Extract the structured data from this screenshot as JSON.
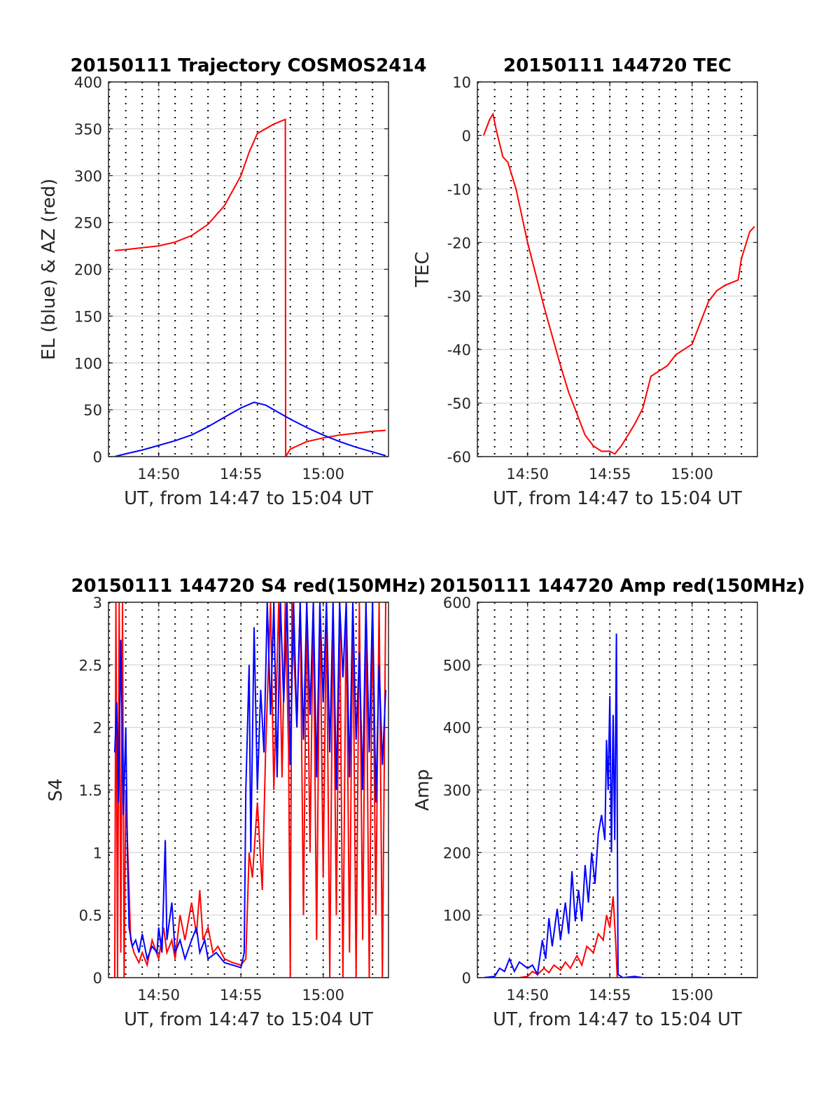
{
  "chart_data": [
    {
      "type": "line",
      "title": "20150111 Trajectory COSMOS2414",
      "xlabel": "UT, from 14:47 to 15:04 UT",
      "ylabel": "EL (blue) & AZ (red)",
      "x_unit": "minutes after 14:00",
      "xlim": [
        46.95,
        63.97
      ],
      "ylim": [
        0,
        400
      ],
      "yticks": [
        0,
        50,
        100,
        150,
        200,
        250,
        300,
        350,
        400
      ],
      "xticks": [
        {
          "v": 50,
          "label": "14:50"
        },
        {
          "v": 55,
          "label": "14:55"
        },
        {
          "v": 60,
          "label": "15:00"
        }
      ],
      "grid": true,
      "series": [
        {
          "name": "AZ",
          "color": "#ff0000",
          "x": [
            47.33,
            48,
            49,
            50,
            51,
            52,
            53,
            54,
            55,
            55.5,
            56,
            57,
            57.7,
            57.72,
            58,
            59,
            60,
            61,
            62,
            63,
            63.8
          ],
          "y": [
            220,
            221,
            223,
            225,
            229,
            236,
            248,
            268,
            300,
            325,
            345,
            355,
            360,
            0,
            8,
            16,
            20,
            23,
            25,
            27,
            28
          ]
        },
        {
          "name": "EL",
          "color": "#0000ff",
          "x": [
            47.33,
            48,
            49,
            50,
            51,
            52,
            53,
            54,
            55,
            55.8,
            56.5,
            57,
            58,
            59,
            60,
            61,
            62,
            63,
            63.8
          ],
          "y": [
            0,
            3,
            7,
            12,
            17,
            23,
            32,
            42,
            52,
            58,
            55,
            50,
            40,
            31,
            23,
            16,
            10,
            5,
            1
          ]
        }
      ]
    },
    {
      "type": "line",
      "title": "20150111 144720 TEC",
      "xlabel": "UT, from 14:47 to 15:04 UT",
      "ylabel": "TEC",
      "x_unit": "minutes after 14:00",
      "xlim": [
        46.95,
        63.97
      ],
      "ylim": [
        -60,
        10
      ],
      "yticks": [
        -60,
        -50,
        -40,
        -30,
        -20,
        -10,
        0,
        10
      ],
      "xticks": [
        {
          "v": 50,
          "label": "14:50"
        },
        {
          "v": 55,
          "label": "14:55"
        },
        {
          "v": 60,
          "label": "15:00"
        }
      ],
      "grid": true,
      "series": [
        {
          "name": "TEC",
          "color": "#ff0000",
          "x": [
            47.33,
            47.7,
            47.9,
            48.1,
            48.5,
            48.8,
            49.3,
            50,
            51,
            52,
            52.5,
            53,
            53.5,
            54,
            54.5,
            55,
            55.3,
            55.7,
            56.5,
            57,
            57.5,
            58,
            58.5,
            59,
            59.5,
            60,
            60.5,
            61,
            61.5,
            62,
            62.8,
            63,
            63.5,
            63.8
          ],
          "y": [
            0,
            3,
            4,
            1,
            -4,
            -5,
            -10,
            -20,
            -32,
            -43,
            -48,
            -52,
            -56,
            -58,
            -59,
            -59,
            -59.5,
            -58,
            -54,
            -51,
            -45,
            -44,
            -43,
            -41,
            -40,
            -39,
            -35,
            -31,
            -29,
            -28,
            -27,
            -23,
            -18,
            -17
          ]
        }
      ]
    },
    {
      "type": "line",
      "title": "20150111 144720 S4 red(150MHz)",
      "xlabel": "UT, from 14:47 to 15:04 UT",
      "ylabel": "S4",
      "x_unit": "minutes after 14:00",
      "xlim": [
        46.95,
        63.97
      ],
      "ylim": [
        0,
        3
      ],
      "yticks": [
        0,
        0.5,
        1,
        1.5,
        2,
        2.5,
        3
      ],
      "xticks": [
        {
          "v": 50,
          "label": "14:50"
        },
        {
          "v": 55,
          "label": "14:55"
        },
        {
          "v": 60,
          "label": "15:00"
        }
      ],
      "grid": true,
      "series": [
        {
          "name": "red",
          "color": "#ff0000",
          "x": [
            47.33,
            47.4,
            47.5,
            47.6,
            47.7,
            47.8,
            47.9,
            48,
            48.3,
            48.5,
            48.8,
            49,
            49.3,
            49.6,
            50,
            50.3,
            50.5,
            50.8,
            51,
            51.3,
            51.6,
            52,
            52.3,
            52.5,
            52.7,
            53,
            53.3,
            53.6,
            54,
            54.5,
            55,
            55.3,
            55.5,
            55.7,
            56,
            56.3,
            56.5,
            56.8,
            57,
            57.3,
            57.5,
            57.7,
            57.9,
            58,
            58.1,
            58.4,
            58.6,
            58.8,
            59,
            59.2,
            59.4,
            59.6,
            59.8,
            60,
            60.2,
            60.4,
            60.6,
            60.8,
            61,
            61.2,
            61.4,
            61.6,
            61.8,
            62,
            62.2,
            62.4,
            62.6,
            62.8,
            63,
            63.2,
            63.4,
            63.6,
            63.8
          ],
          "y": [
            0,
            3,
            0,
            3,
            0.2,
            3,
            0,
            1.5,
            0.3,
            0.2,
            0.12,
            0.2,
            0.1,
            0.3,
            0.15,
            0.4,
            0.2,
            0.3,
            0.15,
            0.5,
            0.3,
            0.6,
            0.35,
            0.7,
            0.3,
            0.4,
            0.2,
            0.25,
            0.15,
            0.12,
            0.1,
            0.15,
            1.0,
            0.8,
            1.4,
            0.7,
            1.8,
            3,
            1.5,
            3,
            1.6,
            3,
            1.8,
            0,
            3,
            2,
            3,
            0.5,
            3,
            1,
            3,
            0.3,
            3,
            0.8,
            3,
            0,
            3,
            0.5,
            3,
            0,
            3,
            0.2,
            3,
            0,
            3,
            0.3,
            3,
            0,
            3,
            0.5,
            3,
            0,
            3
          ]
        },
        {
          "name": "blue",
          "color": "#0000ff",
          "x": [
            47.33,
            47.45,
            47.55,
            47.7,
            47.85,
            48,
            48.1,
            48.2,
            48.4,
            48.6,
            48.8,
            49,
            49.3,
            49.6,
            49.9,
            50,
            50.2,
            50.4,
            50.5,
            50.8,
            51,
            51.3,
            51.6,
            52,
            52.3,
            52.5,
            52.8,
            53,
            53.5,
            54,
            54.5,
            55,
            55.2,
            55.3,
            55.5,
            55.6,
            55.8,
            56,
            56.2,
            56.4,
            56.6,
            56.8,
            57,
            57.2,
            57.4,
            57.6,
            57.8,
            58,
            58.2,
            58.4,
            58.6,
            58.8,
            59,
            59.2,
            59.4,
            59.6,
            59.8,
            60,
            60.2,
            60.4,
            60.6,
            60.8,
            61,
            61.2,
            61.4,
            61.6,
            61.8,
            62,
            62.2,
            62.4,
            62.6,
            62.8,
            63,
            63.2,
            63.4,
            63.6,
            63.8
          ],
          "y": [
            1.8,
            2.2,
            1.4,
            2.7,
            1.3,
            2.0,
            1.0,
            0.4,
            0.25,
            0.3,
            0.2,
            0.35,
            0.15,
            0.25,
            0.2,
            0.4,
            0.2,
            1.1,
            0.3,
            0.6,
            0.2,
            0.3,
            0.15,
            0.3,
            0.4,
            0.2,
            0.3,
            0.15,
            0.2,
            0.12,
            0.1,
            0.08,
            0.2,
            1.5,
            2.5,
            1.0,
            2.8,
            1.5,
            2.3,
            1.8,
            3,
            2.1,
            3,
            1.6,
            3,
            2.2,
            3,
            1.7,
            3,
            2.0,
            3,
            1.9,
            3,
            2.1,
            3,
            1.6,
            3,
            2.2,
            3,
            1.8,
            3,
            1.5,
            3,
            2.4,
            3,
            1.6,
            3,
            1.9,
            2.6,
            1.5,
            3,
            1.8,
            3,
            1.4,
            2.5,
            1.7,
            2.3
          ]
        }
      ]
    },
    {
      "type": "line",
      "title": "20150111 144720 Amp red(150MHz)",
      "xlabel": "UT, from 14:47 to 15:04 UT",
      "ylabel": "Amp",
      "x_unit": "minutes after 14:00",
      "xlim": [
        46.95,
        63.97
      ],
      "ylim": [
        0,
        600
      ],
      "yticks": [
        0,
        100,
        200,
        300,
        400,
        500,
        600
      ],
      "xticks": [
        {
          "v": 50,
          "label": "14:50"
        },
        {
          "v": 55,
          "label": "14:55"
        },
        {
          "v": 60,
          "label": "15:00"
        }
      ],
      "grid": true,
      "series": [
        {
          "name": "red",
          "color": "#ff0000",
          "x": [
            47.33,
            49.5,
            50,
            50.3,
            50.6,
            51,
            51.3,
            51.6,
            52,
            52.3,
            52.6,
            53,
            53.3,
            53.6,
            54,
            54.3,
            54.6,
            54.8,
            55,
            55.2,
            55.35,
            55.45,
            63.8
          ],
          "y": [
            0,
            0,
            2,
            10,
            5,
            15,
            8,
            20,
            12,
            25,
            15,
            35,
            20,
            50,
            40,
            70,
            60,
            100,
            80,
            130,
            60,
            0,
            0
          ]
        },
        {
          "name": "blue",
          "color": "#0000ff",
          "x": [
            47.33,
            48,
            48.3,
            48.6,
            48.9,
            49.2,
            49.5,
            50,
            50.3,
            50.6,
            50.9,
            51.1,
            51.3,
            51.5,
            51.8,
            52,
            52.3,
            52.5,
            52.7,
            52.9,
            53.1,
            53.3,
            53.5,
            53.7,
            53.9,
            54.1,
            54.3,
            54.5,
            54.7,
            54.8,
            54.9,
            55,
            55.1,
            55.2,
            55.3,
            55.4,
            55.5,
            55.8,
            56.5,
            57,
            63.8
          ],
          "y": [
            0,
            2,
            15,
            10,
            30,
            10,
            25,
            15,
            20,
            5,
            60,
            30,
            95,
            50,
            110,
            60,
            120,
            70,
            170,
            90,
            140,
            90,
            180,
            120,
            200,
            150,
            230,
            260,
            220,
            380,
            300,
            450,
            200,
            420,
            220,
            550,
            5,
            0,
            2,
            0,
            0
          ]
        }
      ]
    }
  ]
}
